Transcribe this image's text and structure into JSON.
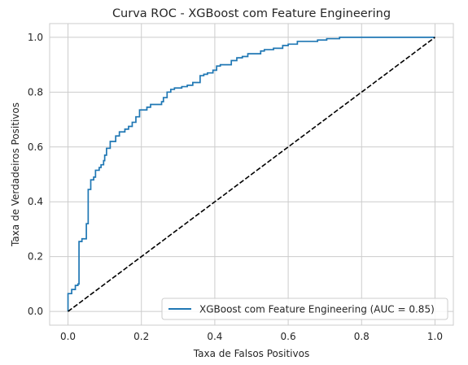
{
  "chart_data": {
    "type": "line",
    "title": "Curva ROC - XGBoost com Feature Engineering",
    "xlabel": "Taxa de Falsos Positivos",
    "ylabel": "Taxa de Verdadeiros Positivos",
    "xlim": [
      -0.05,
      1.05
    ],
    "ylim": [
      -0.05,
      1.05
    ],
    "xticks": [
      "0.0",
      "0.2",
      "0.4",
      "0.6",
      "0.8",
      "1.0"
    ],
    "yticks": [
      "0.0",
      "0.2",
      "0.4",
      "0.6",
      "0.8",
      "1.0"
    ],
    "grid": true,
    "legend_position": "lower-right",
    "series": [
      {
        "name": "XGBoost com Feature Engineering (AUC = 0.85)",
        "color": "#1f77b4",
        "style": "solid",
        "points": [
          [
            0,
            0
          ],
          [
            0,
            0.065
          ],
          [
            0.01,
            0.065
          ],
          [
            0.01,
            0.08
          ],
          [
            0.02,
            0.08
          ],
          [
            0.02,
            0.095
          ],
          [
            0.027,
            0.095
          ],
          [
            0.027,
            0.1
          ],
          [
            0.03,
            0.1
          ],
          [
            0.03,
            0.255
          ],
          [
            0.038,
            0.255
          ],
          [
            0.038,
            0.265
          ],
          [
            0.05,
            0.265
          ],
          [
            0.05,
            0.32
          ],
          [
            0.055,
            0.32
          ],
          [
            0.055,
            0.445
          ],
          [
            0.062,
            0.445
          ],
          [
            0.062,
            0.48
          ],
          [
            0.07,
            0.48
          ],
          [
            0.07,
            0.49
          ],
          [
            0.075,
            0.49
          ],
          [
            0.075,
            0.515
          ],
          [
            0.085,
            0.515
          ],
          [
            0.085,
            0.525
          ],
          [
            0.09,
            0.525
          ],
          [
            0.09,
            0.535
          ],
          [
            0.097,
            0.535
          ],
          [
            0.097,
            0.55
          ],
          [
            0.1,
            0.55
          ],
          [
            0.1,
            0.57
          ],
          [
            0.105,
            0.57
          ],
          [
            0.105,
            0.595
          ],
          [
            0.115,
            0.595
          ],
          [
            0.115,
            0.62
          ],
          [
            0.13,
            0.62
          ],
          [
            0.13,
            0.64
          ],
          [
            0.14,
            0.64
          ],
          [
            0.14,
            0.655
          ],
          [
            0.155,
            0.655
          ],
          [
            0.155,
            0.665
          ],
          [
            0.165,
            0.665
          ],
          [
            0.165,
            0.675
          ],
          [
            0.175,
            0.675
          ],
          [
            0.175,
            0.69
          ],
          [
            0.185,
            0.69
          ],
          [
            0.185,
            0.71
          ],
          [
            0.195,
            0.71
          ],
          [
            0.195,
            0.735
          ],
          [
            0.215,
            0.735
          ],
          [
            0.215,
            0.745
          ],
          [
            0.225,
            0.745
          ],
          [
            0.225,
            0.755
          ],
          [
            0.255,
            0.755
          ],
          [
            0.255,
            0.765
          ],
          [
            0.26,
            0.765
          ],
          [
            0.26,
            0.78
          ],
          [
            0.27,
            0.78
          ],
          [
            0.27,
            0.8
          ],
          [
            0.28,
            0.8
          ],
          [
            0.28,
            0.81
          ],
          [
            0.29,
            0.81
          ],
          [
            0.29,
            0.815
          ],
          [
            0.31,
            0.815
          ],
          [
            0.31,
            0.82
          ],
          [
            0.325,
            0.82
          ],
          [
            0.325,
            0.825
          ],
          [
            0.34,
            0.825
          ],
          [
            0.34,
            0.835
          ],
          [
            0.36,
            0.835
          ],
          [
            0.36,
            0.86
          ],
          [
            0.37,
            0.86
          ],
          [
            0.37,
            0.865
          ],
          [
            0.38,
            0.865
          ],
          [
            0.38,
            0.87
          ],
          [
            0.395,
            0.87
          ],
          [
            0.395,
            0.88
          ],
          [
            0.405,
            0.88
          ],
          [
            0.405,
            0.895
          ],
          [
            0.415,
            0.895
          ],
          [
            0.415,
            0.9
          ],
          [
            0.445,
            0.9
          ],
          [
            0.445,
            0.915
          ],
          [
            0.46,
            0.915
          ],
          [
            0.46,
            0.925
          ],
          [
            0.475,
            0.925
          ],
          [
            0.475,
            0.93
          ],
          [
            0.49,
            0.93
          ],
          [
            0.49,
            0.94
          ],
          [
            0.525,
            0.94
          ],
          [
            0.525,
            0.95
          ],
          [
            0.535,
            0.95
          ],
          [
            0.535,
            0.955
          ],
          [
            0.56,
            0.955
          ],
          [
            0.56,
            0.96
          ],
          [
            0.585,
            0.96
          ],
          [
            0.585,
            0.97
          ],
          [
            0.6,
            0.97
          ],
          [
            0.6,
            0.975
          ],
          [
            0.625,
            0.975
          ],
          [
            0.625,
            0.985
          ],
          [
            0.68,
            0.985
          ],
          [
            0.68,
            0.99
          ],
          [
            0.705,
            0.99
          ],
          [
            0.705,
            0.995
          ],
          [
            0.74,
            0.995
          ],
          [
            0.74,
            1.0
          ],
          [
            1.0,
            1.0
          ]
        ]
      },
      {
        "name": "",
        "color": "#000000",
        "style": "dashed",
        "points": [
          [
            0,
            0
          ],
          [
            1,
            1
          ]
        ]
      }
    ]
  }
}
